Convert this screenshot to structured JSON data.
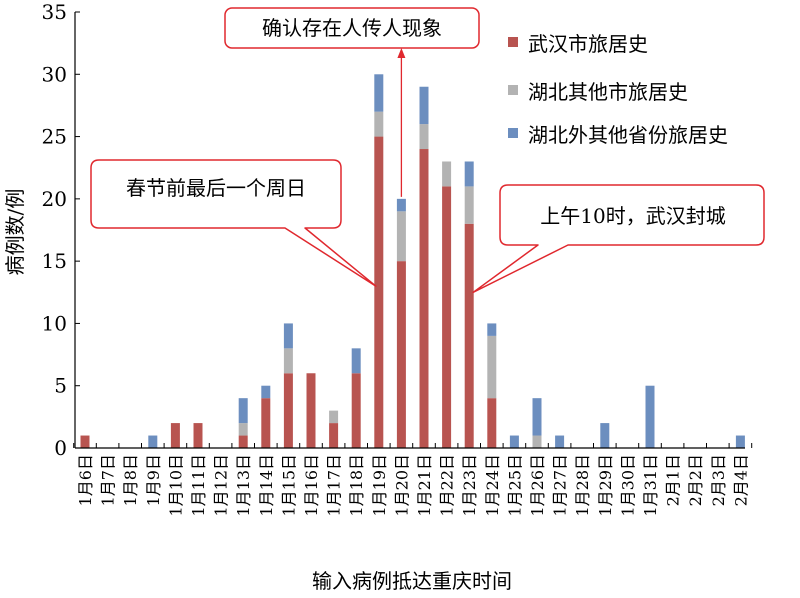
{
  "colors": {
    "wuhan": "#b85450",
    "hubei_other_city": "#b3b3b3",
    "other_province": "#6c8ebf",
    "annotation": "#e0282e",
    "axis": "#000000"
  },
  "chart_data": {
    "type": "bar",
    "stacked": true,
    "ylabel": "病例数/例",
    "xlabel": "输入病例抵达重庆时间",
    "ylim": [
      0,
      35
    ],
    "yticks": [
      0,
      5,
      10,
      15,
      20,
      25,
      30,
      35
    ],
    "grid": false,
    "legend_position": "top-right",
    "categories": [
      "1月6日",
      "1月7日",
      "1月8日",
      "1月9日",
      "1月10日",
      "1月11日",
      "1月12日",
      "1月13日",
      "1月14日",
      "1月15日",
      "1月16日",
      "1月17日",
      "1月18日",
      "1月19日",
      "1月20日",
      "1月21日",
      "1月22日",
      "1月23日",
      "1月24日",
      "1月25日",
      "1月26日",
      "1月27日",
      "1月28日",
      "1月29日",
      "1月30日",
      "1月31日",
      "2月1日",
      "2月2日",
      "2月3日",
      "2月4日"
    ],
    "series": [
      {
        "name": "武汉市旅居史",
        "color_key": "wuhan",
        "values": [
          1,
          0,
          0,
          0,
          2,
          2,
          0,
          1,
          4,
          6,
          6,
          2,
          6,
          25,
          15,
          24,
          21,
          18,
          4,
          0,
          0,
          0,
          0,
          0,
          0,
          0,
          0,
          0,
          0,
          0
        ]
      },
      {
        "name": "湖北其他市旅居史",
        "color_key": "hubei_other_city",
        "values": [
          0,
          0,
          0,
          0,
          0,
          0,
          0,
          1,
          0,
          2,
          0,
          1,
          0,
          2,
          4,
          2,
          2,
          3,
          5,
          0,
          1,
          0,
          0,
          0,
          0,
          0,
          0,
          0,
          0,
          0
        ]
      },
      {
        "name": "湖北外其他省份旅居史",
        "color_key": "other_province",
        "values": [
          0,
          0,
          0,
          1,
          0,
          0,
          0,
          2,
          1,
          2,
          0,
          0,
          2,
          3,
          1,
          3,
          0,
          2,
          1,
          1,
          3,
          1,
          0,
          2,
          0,
          5,
          0,
          0,
          0,
          1
        ]
      }
    ],
    "annotations": [
      {
        "id": "transmission",
        "text": "确认存在人传人现象",
        "category": "1月20日"
      },
      {
        "id": "spring",
        "text": "春节前最后一个周日",
        "category": "1月19日"
      },
      {
        "id": "lockdown",
        "text": "上午10时，武汉封城",
        "category": "1月23日"
      }
    ]
  }
}
